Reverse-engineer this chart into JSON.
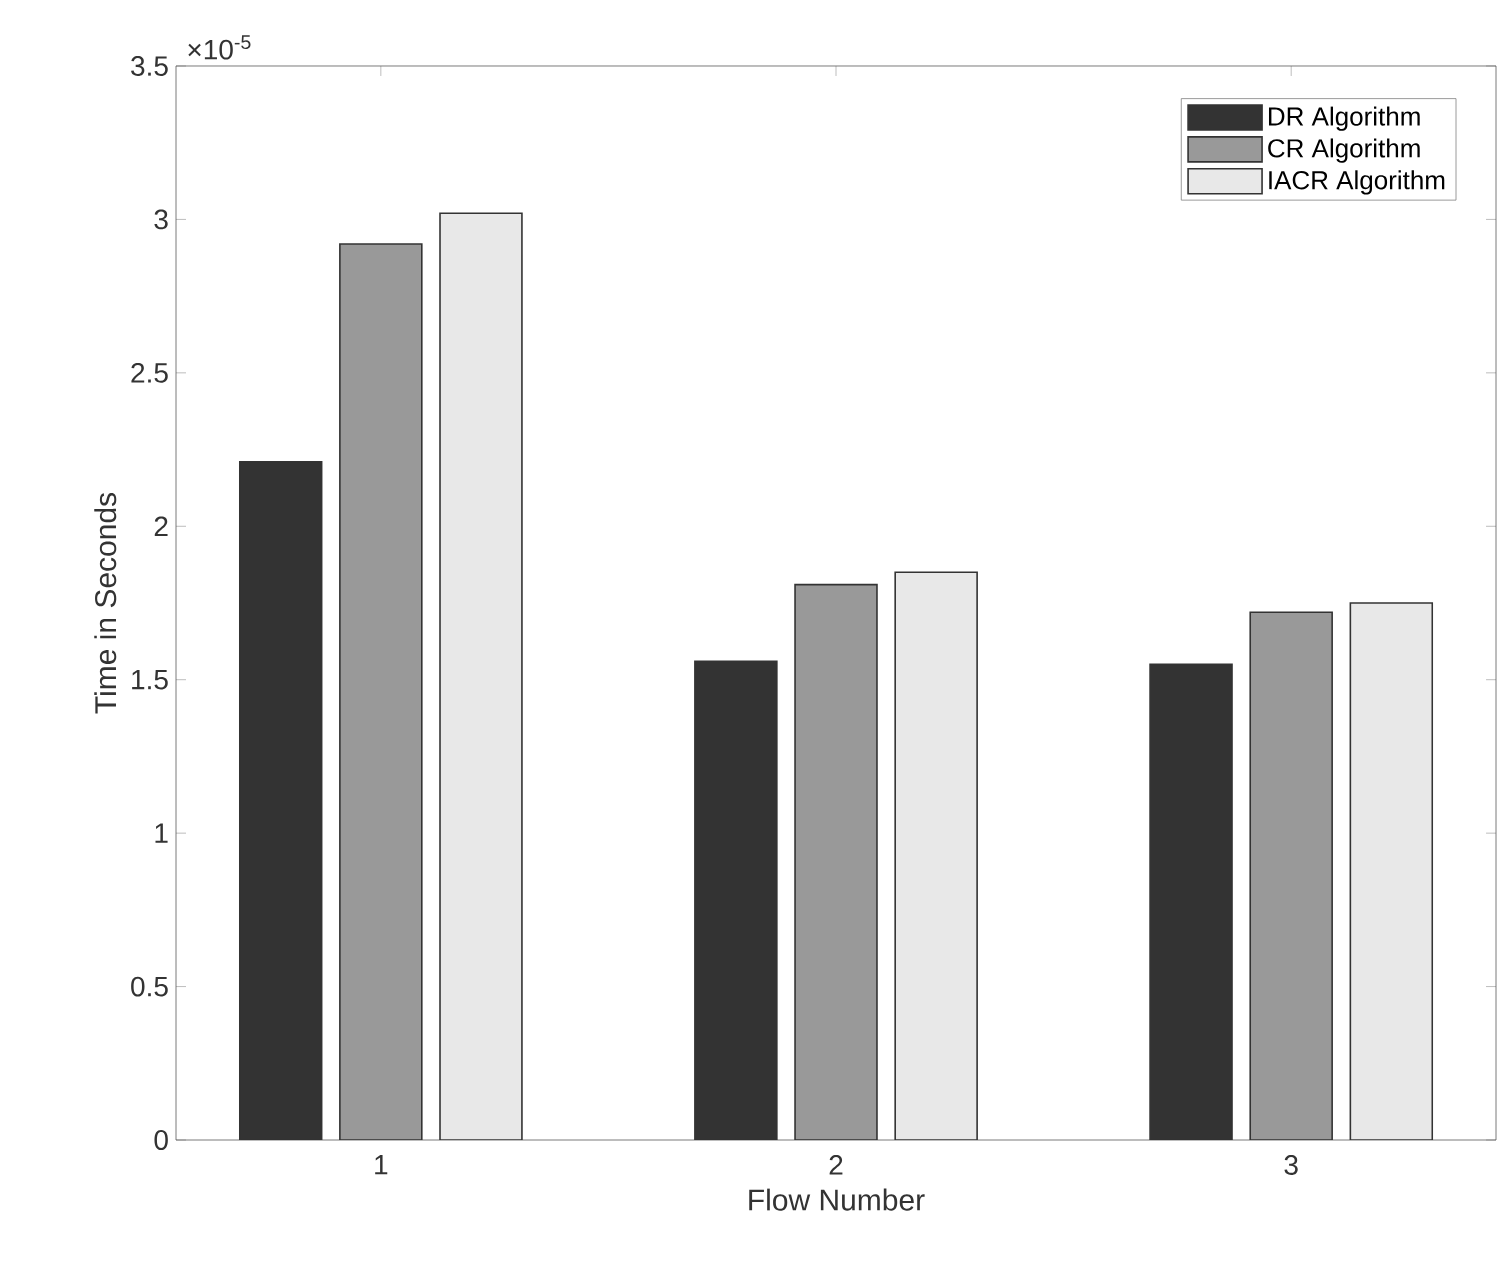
{
  "chart_data": {
    "type": "bar",
    "xlabel": "Flow Number",
    "ylabel": "Time in Seconds",
    "categories": [
      "1",
      "2",
      "3"
    ],
    "series": [
      {
        "name": "DR Algorithm",
        "color": "#333333",
        "values": [
          2.21,
          1.56,
          1.55
        ]
      },
      {
        "name": "CR Algorithm",
        "color": "#999999",
        "values": [
          2.92,
          1.81,
          1.72
        ]
      },
      {
        "name": "IACR Algorithm",
        "color": "#e8e8e8",
        "values": [
          3.02,
          1.85,
          1.75
        ]
      }
    ],
    "ylim": [
      0,
      3.5
    ],
    "yticks": [
      0,
      0.5,
      1,
      1.5,
      2,
      2.5,
      3,
      3.5
    ],
    "annotations": [
      "×10$^{-5}$"
    ],
    "legend": "top right",
    "grid": false
  }
}
